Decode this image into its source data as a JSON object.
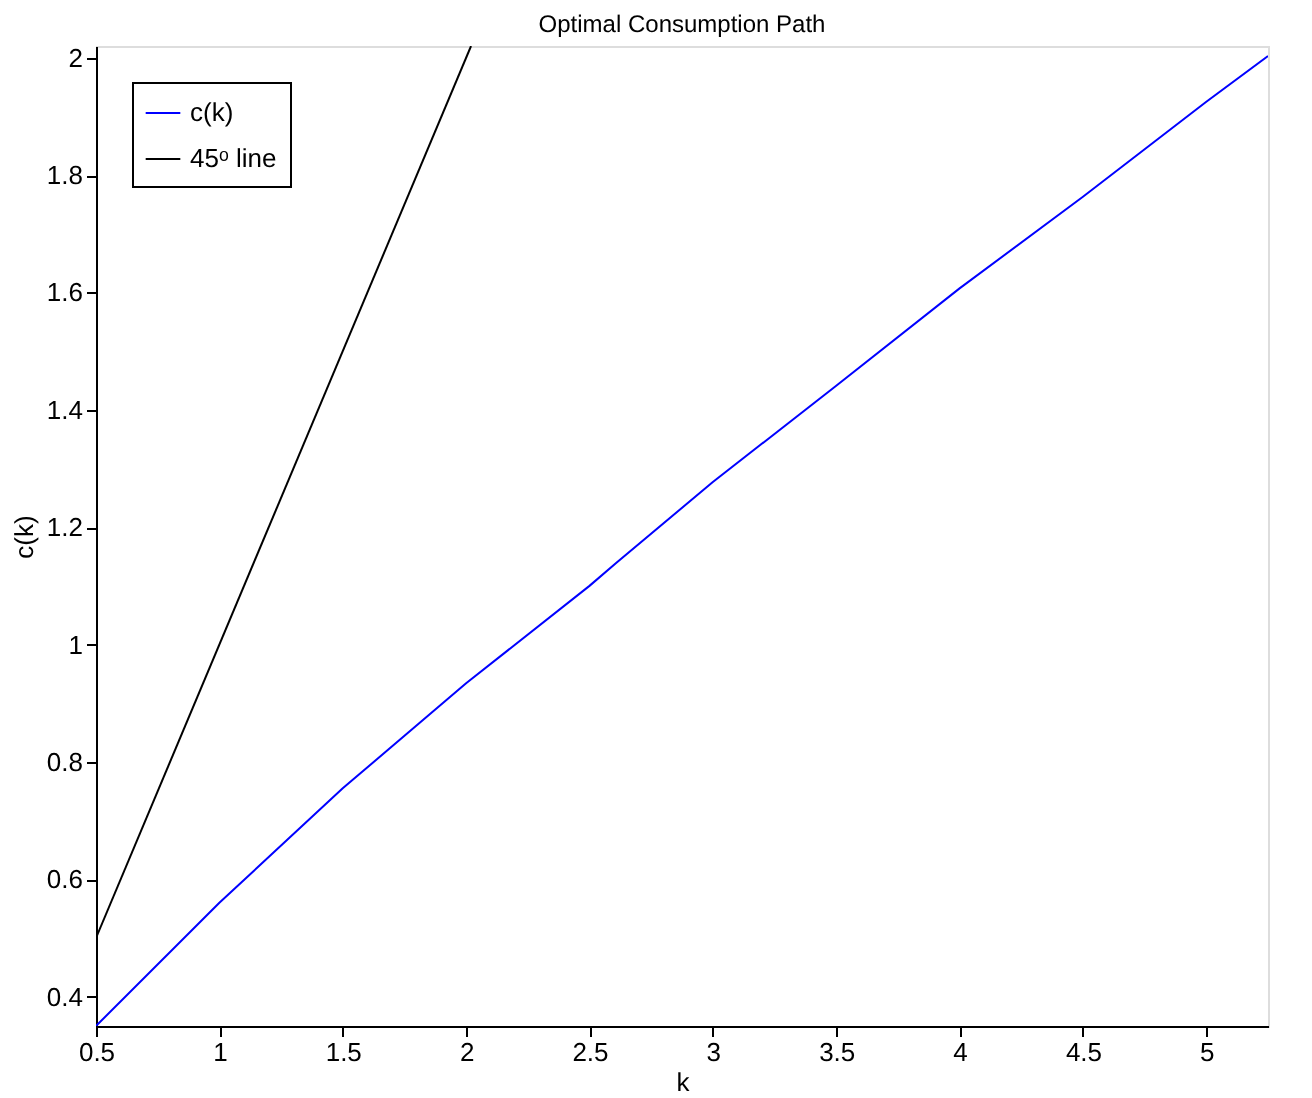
{
  "chart_data": {
    "type": "line",
    "title": "Optimal Consumption Path",
    "xlabel": "k",
    "ylabel": "c(k)",
    "xlim": [
      0.5,
      5.25
    ],
    "ylim": [
      0.35,
      2.02
    ],
    "xticks": [
      0.5,
      1,
      1.5,
      2,
      2.5,
      3,
      3.5,
      4,
      4.5,
      5
    ],
    "yticks": [
      0.4,
      0.6,
      0.8,
      1,
      1.2,
      1.4,
      1.6,
      1.8,
      2
    ],
    "grid": false,
    "legend": "top left",
    "marker": "none",
    "line_style": "solid",
    "series": [
      {
        "name": "c(k)",
        "color": "#0000ff",
        "x": [
          0.5,
          1,
          1.5,
          2,
          2.5,
          2.608,
          3,
          3.5,
          4,
          4.5,
          5,
          5.25
        ],
        "values": [
          0.35,
          0.56,
          0.755,
          0.934,
          1.1,
          1.139,
          1.277,
          1.441,
          1.607,
          1.763,
          1.925,
          2.003
        ]
      },
      {
        "name": "45ᵒ line",
        "color": "#000000",
        "x": [
          0.5,
          2.02
        ],
        "values": [
          0.5,
          2.02
        ]
      }
    ]
  }
}
